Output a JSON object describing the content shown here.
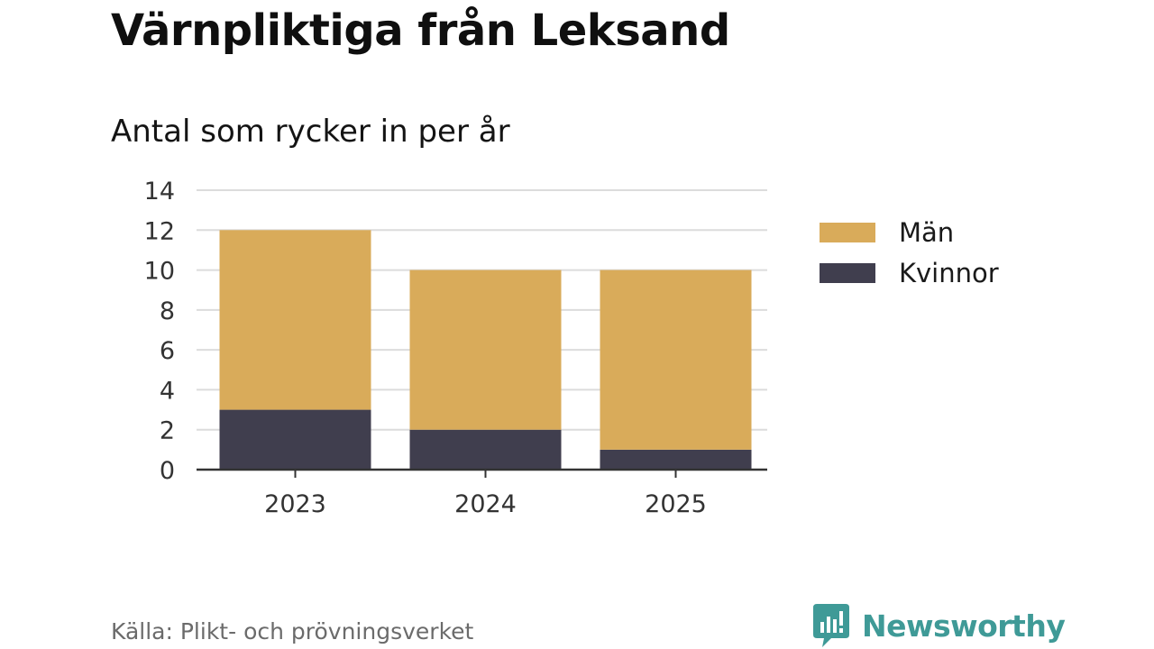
{
  "header": {
    "title": "Värnpliktiga från Leksand",
    "subtitle": "Antal som rycker in per år"
  },
  "footer": {
    "source": "Källa: Plikt- och prövningsverket",
    "brand": "Newsworthy"
  },
  "colors": {
    "man": "#d9ab5a",
    "kvinnor": "#403e4e",
    "grid": "#dcdcdc",
    "axis": "#333333",
    "brand": "#3f9a97"
  },
  "chart_data": {
    "type": "bar",
    "stacked": true,
    "categories": [
      "2023",
      "2024",
      "2025"
    ],
    "series": [
      {
        "name": "Kvinnor",
        "values": [
          3,
          2,
          1
        ]
      },
      {
        "name": "Män",
        "values": [
          9,
          8,
          9
        ]
      }
    ],
    "legend": [
      "Män",
      "Kvinnor"
    ],
    "legend_position": "right",
    "y_ticks": [
      "0",
      "2",
      "4",
      "6",
      "8",
      "10",
      "12",
      "14"
    ],
    "ylim": [
      0,
      14
    ],
    "grid": true
  }
}
